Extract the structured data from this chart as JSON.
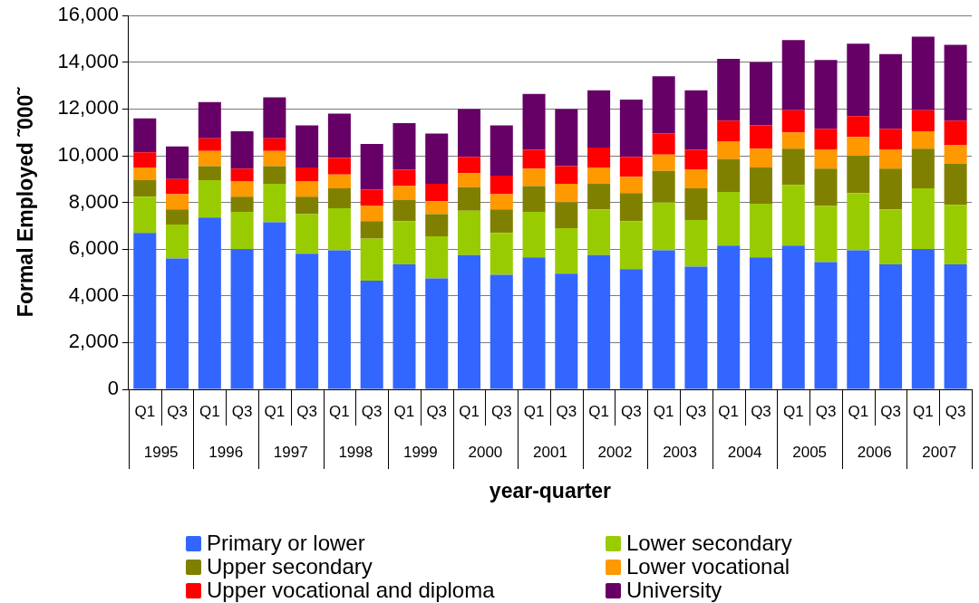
{
  "chart_data": {
    "type": "bar",
    "stacked": true,
    "xlabel": "year-quarter",
    "ylabel": "Formal Employed ˜000˜",
    "categories": [
      "Q1",
      "Q3",
      "Q1",
      "Q3",
      "Q1",
      "Q3",
      "Q1",
      "Q3",
      "Q1",
      "Q3",
      "Q1",
      "Q3",
      "Q1",
      "Q3",
      "Q1",
      "Q3",
      "Q1",
      "Q3",
      "Q1",
      "Q3",
      "Q1",
      "Q3",
      "Q1",
      "Q3",
      "Q1",
      "Q3"
    ],
    "annotations": [
      "1995",
      "1996",
      "1997",
      "1998",
      "1999",
      "2000",
      "2001",
      "2002",
      "2003",
      "2004",
      "2005",
      "2006",
      "2007"
    ],
    "series": [
      {
        "name": "Primary or lower",
        "color": "#3366ff",
        "values": [
          6700,
          5600,
          7350,
          6000,
          7150,
          5800,
          5950,
          4650,
          5350,
          4750,
          5750,
          4900,
          5650,
          4950,
          5750,
          5150,
          5950,
          5250,
          6150,
          5650,
          6150,
          5450,
          5950,
          5350,
          6000,
          5350
        ]
      },
      {
        "name": "Lower secondary",
        "color": "#99cc00",
        "values": [
          1550,
          1450,
          1600,
          1600,
          1650,
          1700,
          1800,
          1800,
          1850,
          1800,
          1900,
          1800,
          1950,
          1950,
          1950,
          2050,
          2050,
          2000,
          2300,
          2300,
          2600,
          2400,
          2450,
          2350,
          2600,
          2550
        ]
      },
      {
        "name": "Upper secondary",
        "color": "#808000",
        "values": [
          700,
          650,
          600,
          650,
          750,
          750,
          850,
          750,
          900,
          950,
          1000,
          1000,
          1100,
          1100,
          1100,
          1200,
          1350,
          1350,
          1400,
          1550,
          1550,
          1600,
          1600,
          1750,
          1700,
          1750
        ]
      },
      {
        "name": "Lower vocational",
        "color": "#ff9900",
        "values": [
          550,
          650,
          650,
          650,
          650,
          650,
          600,
          650,
          600,
          550,
          600,
          650,
          750,
          800,
          700,
          700,
          700,
          800,
          750,
          800,
          700,
          800,
          800,
          800,
          750,
          800
        ]
      },
      {
        "name": "Upper vocational and diploma",
        "color": "#ff0000",
        "values": [
          650,
          650,
          550,
          550,
          550,
          600,
          700,
          700,
          700,
          750,
          700,
          800,
          800,
          750,
          850,
          850,
          900,
          850,
          900,
          1000,
          950,
          900,
          900,
          900,
          900,
          1050
        ]
      },
      {
        "name": "University",
        "color": "#660066",
        "values": [
          1450,
          1400,
          1550,
          1600,
          1750,
          1800,
          1900,
          1950,
          2000,
          2150,
          2050,
          2150,
          2400,
          2450,
          2450,
          2450,
          2450,
          2550,
          2650,
          2700,
          3000,
          2950,
          3100,
          3200,
          3150,
          3250
        ]
      }
    ],
    "ylim": [
      0,
      16000
    ],
    "yticks": [
      {
        "value": 0,
        "label": "0"
      },
      {
        "value": 2000,
        "label": "2,000"
      },
      {
        "value": 4000,
        "label": "4,000"
      },
      {
        "value": 6000,
        "label": "6,000"
      },
      {
        "value": 8000,
        "label": "8,000"
      },
      {
        "value": 10000,
        "label": "10,000"
      },
      {
        "value": 12000,
        "label": "12,000"
      },
      {
        "value": 14000,
        "label": "14,000"
      },
      {
        "value": 16000,
        "label": "16,000"
      }
    ],
    "grid": "y",
    "legend": "bottom"
  }
}
